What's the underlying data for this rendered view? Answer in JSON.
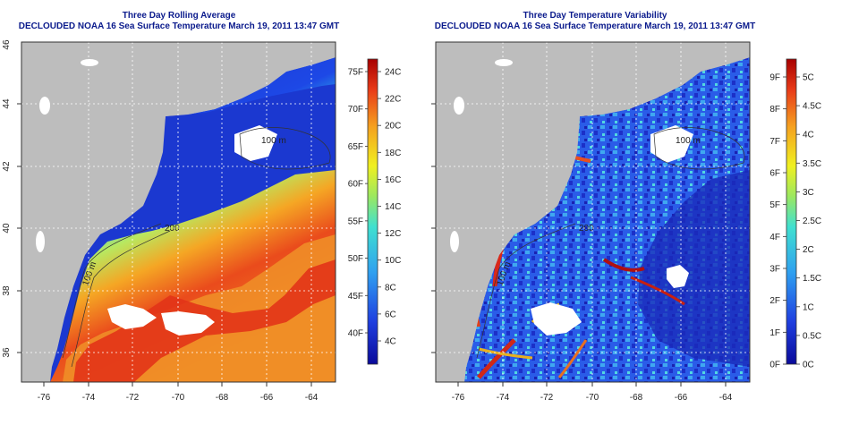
{
  "panels": [
    {
      "id": "avg",
      "title": "Three Day Rolling Average",
      "subtitle": "DECLOUDED NOAA 16 Sea Surface Temperature March 19, 2011 13:47 GMT",
      "lon_ticks": [
        "-76",
        "-74",
        "-72",
        "-70",
        "-68",
        "-66",
        "-64"
      ],
      "lat_ticks": [
        "36",
        "38",
        "40",
        "42",
        "44",
        "46"
      ],
      "contour_labels": [
        "100 m",
        "200",
        "100 m"
      ],
      "colorbar_f": [
        "40F",
        "45F",
        "50F",
        "55F",
        "60F",
        "65F",
        "70F",
        "75F"
      ],
      "colorbar_c": [
        "4C",
        "6C",
        "8C",
        "10C",
        "12C",
        "14C",
        "16C",
        "18C",
        "20C",
        "22C",
        "24C"
      ]
    },
    {
      "id": "var",
      "title": "Three Day Temperature Variability",
      "subtitle": "DECLOUDED NOAA 16 Sea Surface Temperature March 19, 2011 13:47 GMT",
      "lon_ticks": [
        "-76",
        "-74",
        "-72",
        "-70",
        "-68",
        "-66",
        "-64"
      ],
      "lat_ticks": [
        "36",
        "38",
        "40",
        "42",
        "44",
        "46"
      ],
      "contour_labels": [
        "100 m",
        "200",
        "100 m"
      ],
      "colorbar_f": [
        "0F",
        "1F",
        "2F",
        "3F",
        "4F",
        "5F",
        "6F",
        "7F",
        "8F",
        "9F"
      ],
      "colorbar_c": [
        "0C",
        "0.5C",
        "1C",
        "1.5C",
        "2C",
        "2.5C",
        "3C",
        "3.5C",
        "4C",
        "4.5C",
        "5C"
      ]
    }
  ],
  "colors": {
    "land": "#bdbdbd",
    "title": "#0a1a8c",
    "cold": "#1f3fd6",
    "warm": "#e0231c",
    "grid": "#ffffff"
  }
}
